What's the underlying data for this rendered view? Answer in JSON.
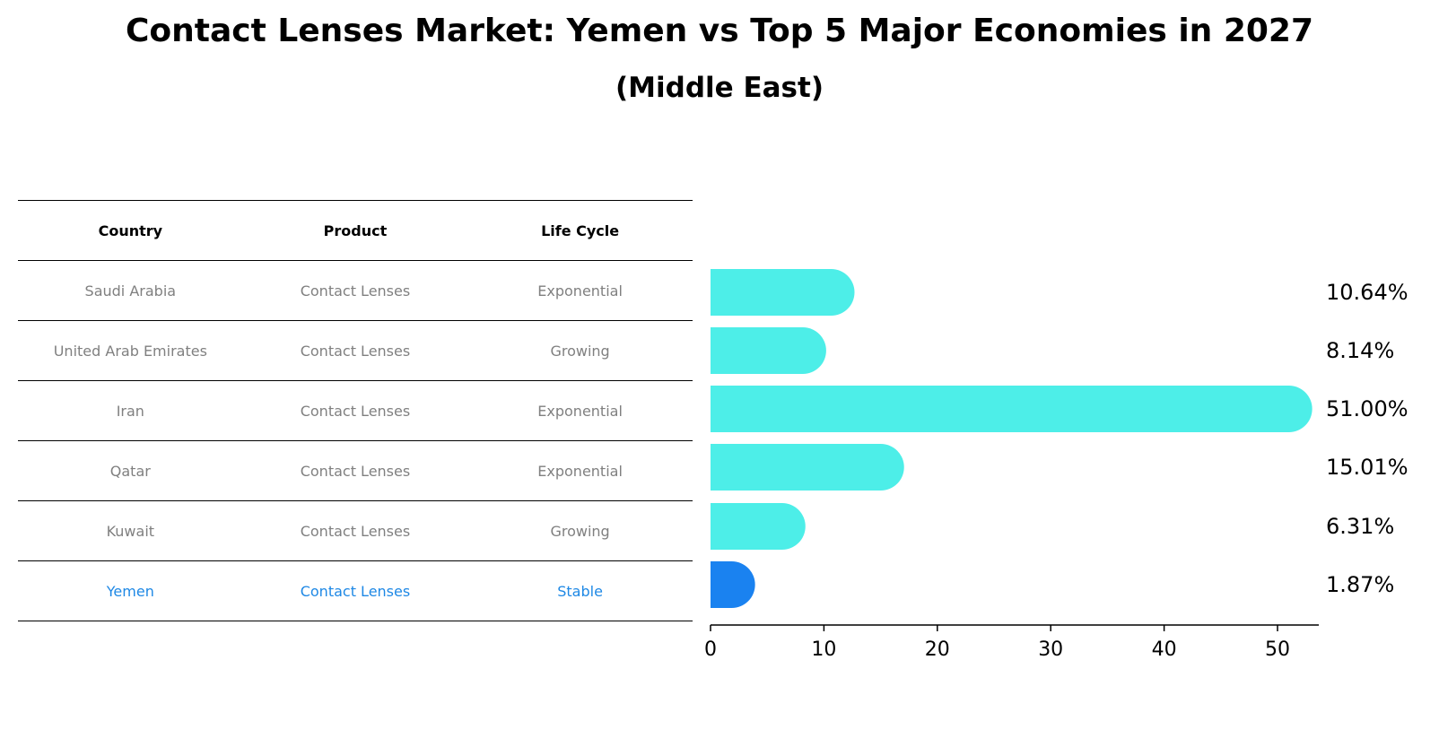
{
  "title": "Contact Lenses Market: Yemen vs Top 5 Major Economies in 2027",
  "subtitle": "(Middle East)",
  "table": {
    "headers": [
      "Country",
      "Product",
      "Life Cycle"
    ],
    "rows": [
      [
        "Saudi Arabia",
        "Contact Lenses",
        "Exponential"
      ],
      [
        "United Arab Emirates",
        "Contact Lenses",
        "Growing"
      ],
      [
        "Iran",
        "Contact Lenses",
        "Exponential"
      ],
      [
        "Qatar",
        "Contact Lenses",
        "Exponential"
      ],
      [
        "Kuwait",
        "Contact Lenses",
        "Growing"
      ],
      [
        "Yemen",
        "Contact Lenses",
        "Stable"
      ]
    ],
    "highlight_row": 5
  },
  "colors": {
    "bar": "#4deee8",
    "highlight": "#1a82f0",
    "highlight_text": "#1e88e5"
  },
  "chart_data": {
    "type": "bar",
    "orientation": "horizontal",
    "categories": [
      "Saudi Arabia",
      "United Arab Emirates",
      "Iran",
      "Qatar",
      "Kuwait",
      "Yemen"
    ],
    "values": [
      10.64,
      8.14,
      51.0,
      15.01,
      6.31,
      1.87
    ],
    "labels": [
      "10.64%",
      "8.14%",
      "51.00%",
      "15.01%",
      "6.31%",
      "1.87%"
    ],
    "xticks": [
      0,
      10,
      20,
      30,
      40,
      50
    ],
    "xlim": [
      0,
      53.5
    ],
    "highlight": "Yemen"
  }
}
